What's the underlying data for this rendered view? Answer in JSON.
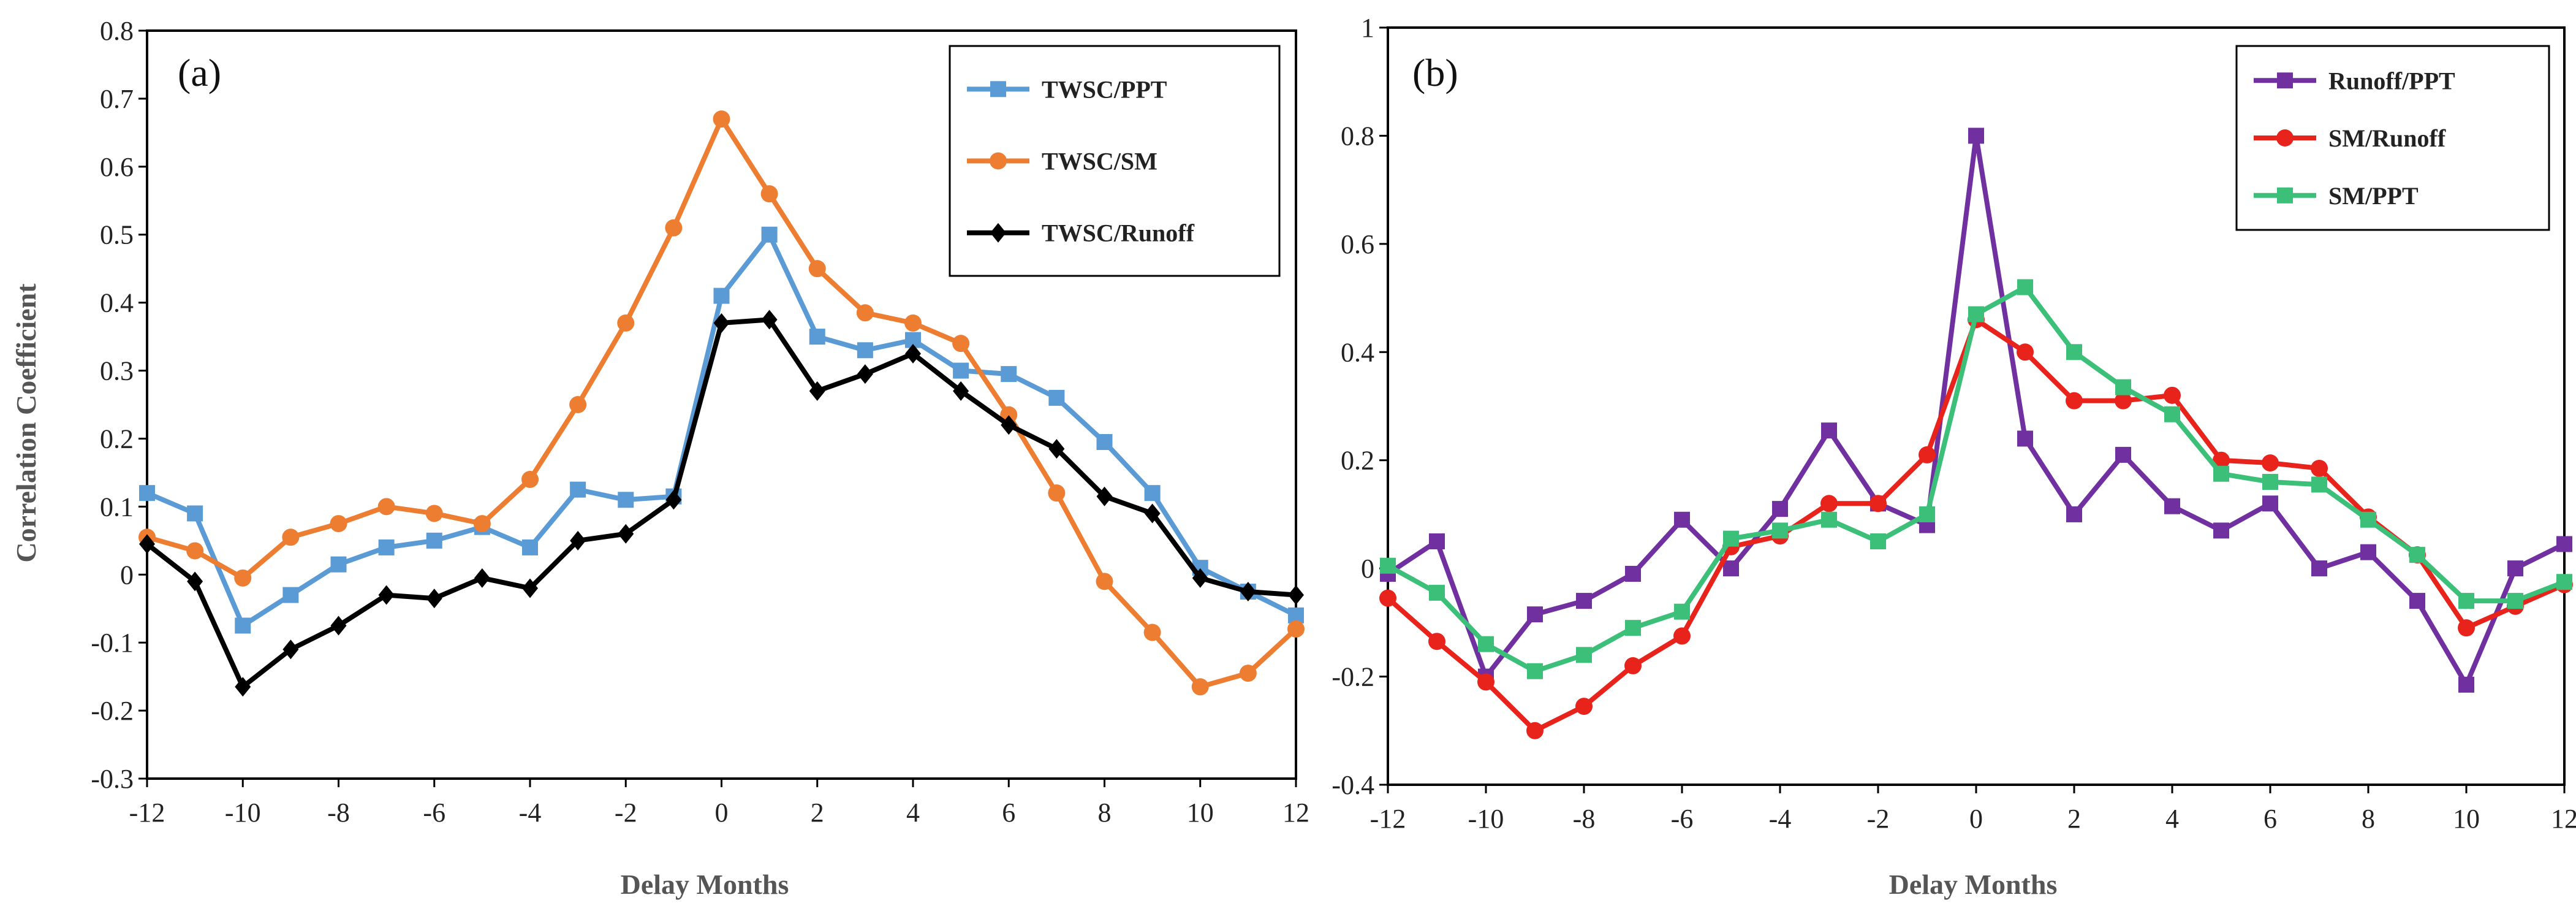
{
  "figure": {
    "colors": {
      "TWSC/PPT": "#5b9bd5",
      "TWSC/SM": "#ed7d31",
      "TWSC/Runoff": "#000000",
      "Runoff/PPT": "#7030a0",
      "SM/Runoff": "#e8231b",
      "SM/PPT": "#3cbf78",
      "frame": "#000000"
    }
  },
  "chart_data": [
    {
      "type": "line",
      "panel_label": "(a)",
      "title": "",
      "xlabel": "Delay Months",
      "ylabel": "Correlation Coefficient",
      "xlim": [
        -12,
        12
      ],
      "ylim": [
        -0.3,
        0.8
      ],
      "xticks": [
        -12,
        -10,
        -8,
        -6,
        -4,
        -2,
        0,
        2,
        4,
        6,
        8,
        10,
        12
      ],
      "x_tick_labels": [
        "-12",
        "-10",
        "-8",
        "-6",
        "-4",
        "-2",
        "0",
        "2",
        "4",
        "6",
        "8",
        "10",
        "12"
      ],
      "yticks": [
        -0.3,
        -0.2,
        -0.1,
        0,
        0.1,
        0.2,
        0.3,
        0.4,
        0.5,
        0.6,
        0.7,
        0.8
      ],
      "y_tick_labels": [
        "-0.3",
        "-0.2",
        "-0.1",
        "0",
        "0.1",
        "0.2",
        "0.3",
        "0.4",
        "0.5",
        "0.6",
        "0.7",
        "0.8"
      ],
      "legend_position": "top-right",
      "x": [
        -12,
        -11,
        -10,
        -9,
        -8,
        -7,
        -6,
        -5,
        -4,
        -3,
        -2,
        -1,
        0,
        1,
        2,
        3,
        4,
        5,
        6,
        7,
        8,
        9,
        10,
        11,
        12
      ],
      "series": [
        {
          "name": "TWSC/PPT",
          "marker": "square",
          "values": [
            0.12,
            0.09,
            -0.075,
            -0.03,
            0.015,
            0.04,
            0.05,
            0.07,
            0.04,
            0.125,
            0.11,
            0.115,
            0.41,
            0.5,
            0.35,
            0.33,
            0.345,
            0.3,
            0.295,
            0.26,
            0.195,
            0.12,
            0.01,
            -0.025,
            -0.06
          ]
        },
        {
          "name": "TWSC/SM",
          "marker": "circle",
          "values": [
            0.055,
            0.035,
            -0.005,
            0.055,
            0.075,
            0.1,
            0.09,
            0.075,
            0.14,
            0.25,
            0.37,
            0.51,
            0.67,
            0.56,
            0.45,
            0.385,
            0.37,
            0.34,
            0.235,
            0.12,
            -0.01,
            -0.085,
            -0.165,
            -0.145,
            -0.08
          ]
        },
        {
          "name": "TWSC/Runoff",
          "marker": "diamond",
          "values": [
            0.045,
            -0.01,
            -0.165,
            -0.11,
            -0.075,
            -0.03,
            -0.035,
            -0.005,
            -0.02,
            0.05,
            0.06,
            0.11,
            0.37,
            0.375,
            0.27,
            0.295,
            0.325,
            0.27,
            0.22,
            0.185,
            0.115,
            0.09,
            -0.005,
            -0.025,
            -0.03
          ]
        }
      ]
    },
    {
      "type": "line",
      "panel_label": "(b)",
      "title": "",
      "xlabel": "Delay Months",
      "ylabel": "",
      "xlim": [
        -12,
        12
      ],
      "ylim": [
        -0.4,
        1
      ],
      "xticks": [
        -12,
        -10,
        -8,
        -6,
        -4,
        -2,
        0,
        2,
        4,
        6,
        8,
        10,
        12
      ],
      "x_tick_labels": [
        "-12",
        "-10",
        "-8",
        "-6",
        "-4",
        "-2",
        "0",
        "2",
        "4",
        "6",
        "8",
        "10",
        "12"
      ],
      "yticks": [
        -0.4,
        -0.2,
        0,
        0.2,
        0.4,
        0.6,
        0.8,
        1
      ],
      "y_tick_labels": [
        "-0.4",
        "-0.2",
        "0",
        "0.2",
        "0.4",
        "0.6",
        "0.8",
        "1"
      ],
      "legend_position": "top-right",
      "x": [
        -12,
        -11,
        -10,
        -9,
        -8,
        -7,
        -6,
        -5,
        -4,
        -3,
        -2,
        -1,
        0,
        1,
        2,
        3,
        4,
        5,
        6,
        7,
        8,
        9,
        10,
        11,
        12
      ],
      "series": [
        {
          "name": "Runoff/PPT",
          "marker": "square",
          "values": [
            -0.01,
            0.05,
            -0.2,
            -0.085,
            -0.06,
            -0.01,
            0.09,
            0.0,
            0.11,
            0.255,
            0.12,
            0.08,
            0.8,
            0.24,
            0.1,
            0.21,
            0.115,
            0.07,
            0.12,
            0.0,
            0.03,
            -0.06,
            -0.215,
            0.0,
            0.045
          ]
        },
        {
          "name": "SM/Runoff",
          "marker": "circle",
          "values": [
            -0.055,
            -0.135,
            -0.21,
            -0.3,
            -0.255,
            -0.18,
            -0.125,
            0.04,
            0.06,
            0.12,
            0.12,
            0.21,
            0.46,
            0.4,
            0.31,
            0.31,
            0.32,
            0.2,
            0.195,
            0.185,
            0.095,
            0.025,
            -0.11,
            -0.07,
            -0.03
          ]
        },
        {
          "name": "SM/PPT",
          "marker": "square",
          "values": [
            0.005,
            -0.045,
            -0.14,
            -0.19,
            -0.16,
            -0.11,
            -0.08,
            0.055,
            0.07,
            0.09,
            0.05,
            0.1,
            0.47,
            0.52,
            0.4,
            0.335,
            0.285,
            0.175,
            0.16,
            0.155,
            0.09,
            0.025,
            -0.06,
            -0.06,
            -0.025
          ]
        }
      ]
    }
  ]
}
